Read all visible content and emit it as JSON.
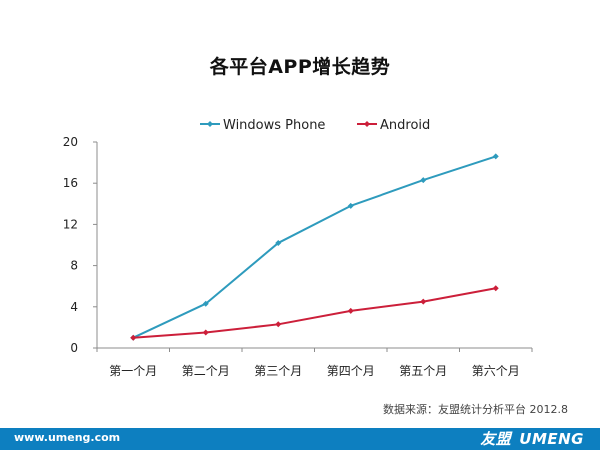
{
  "title": "各平台APP增长趋势",
  "source_note": "数据来源：友盟统计分析平台 2012.8",
  "footer": {
    "url": "www.umeng.com",
    "logo_cn": "友盟",
    "logo_en": "UMENG"
  },
  "chart_data": {
    "type": "line",
    "title": "各平台APP增长趋势",
    "categories": [
      "第一个月",
      "第二个月",
      "第三个月",
      "第四个月",
      "第五个月",
      "第六个月"
    ],
    "series": [
      {
        "name": "Windows Phone",
        "color": "#2e9bbd",
        "values": [
          1.0,
          4.3,
          10.2,
          13.8,
          16.3,
          18.6
        ]
      },
      {
        "name": "Android",
        "color": "#cc1f3a",
        "values": [
          1.0,
          1.5,
          2.3,
          3.6,
          4.5,
          5.8
        ]
      }
    ],
    "y_ticks": [
      0,
      4,
      8,
      12,
      16,
      20
    ],
    "ylim": [
      0,
      20
    ],
    "grid": false,
    "legend": "top"
  }
}
